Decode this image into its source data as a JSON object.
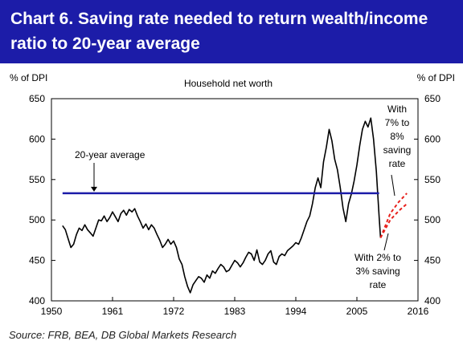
{
  "title": "Chart 6. Saving rate needed to return wealth/income ratio to 20-year average",
  "source": "Source: FRB, BEA, DB Global Markets Research",
  "colors": {
    "title_bg": "#1c1ca8",
    "series": "#000000",
    "average_line": "#1c1ca8",
    "projection": "#e8201c"
  },
  "chart_data": {
    "type": "line",
    "title": "Household net worth",
    "ylabel_left": "% of DPI",
    "ylabel_right": "% of DPI",
    "xlim": [
      1950,
      2016
    ],
    "ylim": [
      400,
      650
    ],
    "x_ticks": [
      1950,
      1961,
      1972,
      1983,
      1994,
      2005,
      2016
    ],
    "y_ticks": [
      400,
      450,
      500,
      550,
      600,
      650
    ],
    "grid": false,
    "series": [
      {
        "values": [
          [
            1952,
            493
          ],
          [
            1952.5,
            488
          ],
          [
            1953,
            477
          ],
          [
            1953.5,
            466
          ],
          [
            1954,
            470
          ],
          [
            1954.5,
            482
          ],
          [
            1955,
            490
          ],
          [
            1955.5,
            487
          ],
          [
            1956,
            494
          ],
          [
            1956.5,
            488
          ],
          [
            1957,
            484
          ],
          [
            1957.5,
            480
          ],
          [
            1958,
            490
          ],
          [
            1958.5,
            500
          ],
          [
            1959,
            499
          ],
          [
            1959.5,
            505
          ],
          [
            1960,
            498
          ],
          [
            1960.5,
            503
          ],
          [
            1961,
            510
          ],
          [
            1961.5,
            504
          ],
          [
            1962,
            498
          ],
          [
            1962.5,
            508
          ],
          [
            1963,
            512
          ],
          [
            1963.5,
            506
          ],
          [
            1964,
            513
          ],
          [
            1964.5,
            510
          ],
          [
            1965,
            514
          ],
          [
            1965.5,
            505
          ],
          [
            1966,
            498
          ],
          [
            1966.5,
            490
          ],
          [
            1967,
            495
          ],
          [
            1967.5,
            488
          ],
          [
            1968,
            494
          ],
          [
            1968.5,
            490
          ],
          [
            1969,
            482
          ],
          [
            1969.5,
            475
          ],
          [
            1970,
            466
          ],
          [
            1970.5,
            470
          ],
          [
            1971,
            476
          ],
          [
            1971.5,
            470
          ],
          [
            1972,
            474
          ],
          [
            1972.5,
            466
          ],
          [
            1973,
            452
          ],
          [
            1973.5,
            445
          ],
          [
            1974,
            430
          ],
          [
            1974.5,
            418
          ],
          [
            1975,
            410
          ],
          [
            1975.5,
            420
          ],
          [
            1976,
            425
          ],
          [
            1976.5,
            430
          ],
          [
            1977,
            428
          ],
          [
            1977.5,
            423
          ],
          [
            1978,
            432
          ],
          [
            1978.5,
            428
          ],
          [
            1979,
            437
          ],
          [
            1979.5,
            434
          ],
          [
            1980,
            440
          ],
          [
            1980.5,
            445
          ],
          [
            1981,
            442
          ],
          [
            1981.5,
            436
          ],
          [
            1982,
            438
          ],
          [
            1982.5,
            444
          ],
          [
            1983,
            450
          ],
          [
            1983.5,
            447
          ],
          [
            1984,
            442
          ],
          [
            1984.5,
            447
          ],
          [
            1985,
            454
          ],
          [
            1985.5,
            460
          ],
          [
            1986,
            458
          ],
          [
            1986.5,
            450
          ],
          [
            1987,
            463
          ],
          [
            1987.5,
            448
          ],
          [
            1988,
            445
          ],
          [
            1988.5,
            450
          ],
          [
            1989,
            458
          ],
          [
            1989.5,
            462
          ],
          [
            1990,
            448
          ],
          [
            1990.5,
            445
          ],
          [
            1991,
            455
          ],
          [
            1991.5,
            458
          ],
          [
            1992,
            456
          ],
          [
            1992.5,
            462
          ],
          [
            1993,
            465
          ],
          [
            1993.5,
            468
          ],
          [
            1994,
            472
          ],
          [
            1994.5,
            470
          ],
          [
            1995,
            478
          ],
          [
            1995.5,
            488
          ],
          [
            1996,
            498
          ],
          [
            1996.5,
            505
          ],
          [
            1997,
            520
          ],
          [
            1997.5,
            540
          ],
          [
            1998,
            552
          ],
          [
            1998.5,
            540
          ],
          [
            1999,
            572
          ],
          [
            1999.5,
            590
          ],
          [
            2000,
            612
          ],
          [
            2000.5,
            598
          ],
          [
            2001,
            575
          ],
          [
            2001.5,
            562
          ],
          [
            2002,
            540
          ],
          [
            2002.5,
            515
          ],
          [
            2003,
            498
          ],
          [
            2003.5,
            520
          ],
          [
            2004,
            532
          ],
          [
            2004.5,
            548
          ],
          [
            2005,
            568
          ],
          [
            2005.5,
            592
          ],
          [
            2006,
            612
          ],
          [
            2006.5,
            622
          ],
          [
            2007,
            615
          ],
          [
            2007.5,
            626
          ],
          [
            2008,
            600
          ],
          [
            2008.5,
            560
          ],
          [
            2009,
            505
          ],
          [
            2009.25,
            478
          ]
        ]
      },
      {
        "name": "20-year average",
        "type": "hline",
        "y": 533,
        "x_range": [
          1952,
          2009
        ]
      },
      {
        "name": "With 7% to 8% saving rate",
        "type": "projection",
        "values": [
          [
            2009.25,
            478
          ],
          [
            2011,
            508
          ],
          [
            2012.5,
            522
          ],
          [
            2014,
            533
          ]
        ]
      },
      {
        "name": "With 2% to 3% saving rate",
        "type": "projection",
        "values": [
          [
            2009.25,
            478
          ],
          [
            2011,
            500
          ],
          [
            2012.5,
            511
          ],
          [
            2014,
            520
          ]
        ]
      }
    ],
    "annotations": {
      "twenty_year": "20-year average",
      "high_saving": [
        "With",
        "7% to",
        "8%",
        "saving",
        "rate"
      ],
      "low_saving": [
        "With 2% to",
        "3% saving",
        "rate"
      ]
    }
  }
}
